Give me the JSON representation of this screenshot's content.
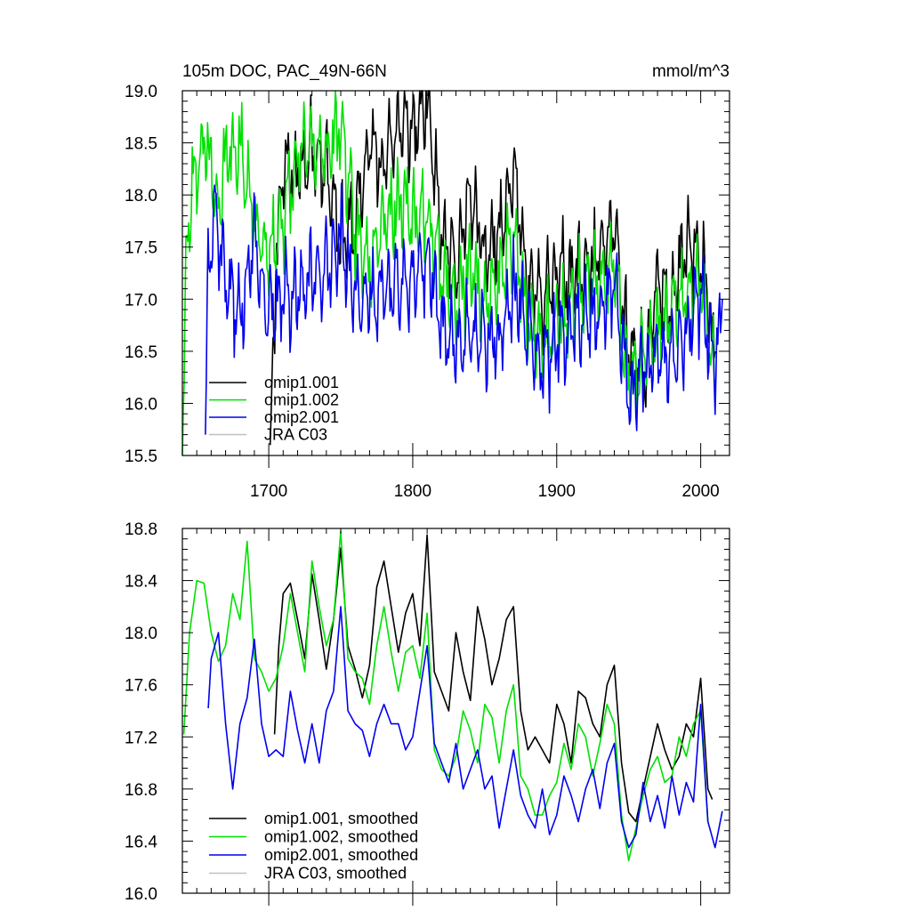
{
  "chart_data": [
    {
      "type": "line",
      "title": "105m DOC, PAC_49N-66N",
      "units": "mmol/m^3",
      "xlim": [
        1640,
        2020
      ],
      "ylim": [
        15.5,
        19.0
      ],
      "xticks": [
        1700,
        1800,
        1900,
        2000
      ],
      "yticks": [
        15.5,
        16.0,
        16.5,
        17.0,
        17.5,
        18.0,
        18.5,
        19.0
      ],
      "ytick_labels": [
        "15.5",
        "16.0",
        "16.5",
        "17.0",
        "17.5",
        "18.0",
        "18.5",
        "19.0"
      ],
      "legend_position": "lower-left",
      "series": [
        {
          "name": "omip1.001",
          "color": "#000000",
          "seed": 11,
          "x": [
            1701,
            1705,
            1710,
            1720,
            1730,
            1740,
            1750,
            1760,
            1770,
            1780,
            1790,
            1800,
            1810,
            1820,
            1830,
            1840,
            1850,
            1860,
            1870,
            1880,
            1890,
            1900,
            1910,
            1920,
            1930,
            1940,
            1950,
            1960,
            1970,
            1980,
            1990,
            2000,
            2010
          ],
          "y": [
            15.6,
            17.4,
            18.3,
            18.2,
            18.4,
            18.3,
            17.6,
            17.7,
            18.5,
            18.3,
            18.7,
            18.6,
            18.9,
            17.7,
            17.3,
            18.0,
            17.4,
            17.6,
            18.2,
            17.1,
            17.0,
            17.3,
            17.2,
            17.3,
            17.4,
            17.7,
            16.5,
            16.3,
            17.2,
            17.0,
            17.5,
            17.4,
            16.5
          ]
        },
        {
          "name": "omip1.002",
          "color": "#00e000",
          "seed": 23,
          "x": [
            1640,
            1643,
            1648,
            1655,
            1660,
            1665,
            1670,
            1680,
            1690,
            1700,
            1710,
            1720,
            1730,
            1740,
            1750,
            1760,
            1770,
            1780,
            1790,
            1800,
            1810,
            1820,
            1830,
            1840,
            1850,
            1860,
            1870,
            1880,
            1890,
            1900,
            1910,
            1920,
            1930,
            1940,
            1950,
            1960,
            1970,
            1980,
            1990,
            2000,
            2010
          ],
          "y": [
            15.5,
            17.5,
            18.2,
            18.5,
            18.3,
            17.8,
            18.4,
            18.5,
            17.7,
            17.4,
            17.8,
            18.3,
            18.5,
            18.4,
            18.7,
            17.6,
            17.4,
            17.8,
            17.9,
            17.8,
            17.8,
            17.3,
            16.9,
            17.3,
            17.0,
            17.2,
            17.6,
            16.8,
            16.6,
            16.8,
            16.9,
            17.2,
            17.1,
            17.3,
            16.2,
            16.5,
            16.7,
            16.9,
            17.0,
            17.2,
            16.2
          ]
        },
        {
          "name": "omip2.001",
          "color": "#0000ee",
          "seed": 37,
          "x": [
            1656,
            1658,
            1662,
            1670,
            1680,
            1690,
            1700,
            1710,
            1720,
            1730,
            1740,
            1750,
            1760,
            1770,
            1780,
            1790,
            1800,
            1810,
            1820,
            1830,
            1840,
            1850,
            1860,
            1870,
            1880,
            1890,
            1900,
            1910,
            1920,
            1930,
            1940,
            1950,
            1960,
            1970,
            1980,
            1990,
            2000,
            2010,
            2015
          ],
          "y": [
            15.7,
            17.4,
            17.9,
            17.2,
            16.8,
            17.6,
            16.8,
            17.1,
            17.0,
            17.2,
            17.3,
            17.6,
            17.0,
            17.0,
            17.1,
            17.1,
            17.2,
            17.4,
            16.8,
            16.5,
            16.7,
            16.6,
            16.6,
            17.1,
            16.7,
            16.3,
            16.6,
            16.7,
            16.8,
            16.8,
            17.2,
            16.1,
            16.3,
            16.5,
            16.5,
            16.7,
            17.0,
            16.4,
            17.0
          ]
        },
        {
          "name": "JRA C03",
          "color": "#c0c0c0",
          "x": [],
          "y": []
        }
      ]
    },
    {
      "type": "line",
      "title": "",
      "xlim": [
        1640,
        2020
      ],
      "ylim": [
        16.0,
        18.8
      ],
      "xticks": [
        1700,
        1800,
        1900,
        2000
      ],
      "yticks": [
        16.0,
        16.4,
        16.8,
        17.2,
        17.6,
        18.0,
        18.4,
        18.8
      ],
      "ytick_labels": [
        "16.0",
        "16.4",
        "16.8",
        "17.2",
        "17.6",
        "18.0",
        "18.4",
        "18.8"
      ],
      "legend_position": "lower-left",
      "series": [
        {
          "name": "omip1.001, smoothed",
          "color": "#000000",
          "x": [
            1704,
            1707,
            1710,
            1715,
            1720,
            1725,
            1730,
            1735,
            1740,
            1745,
            1750,
            1755,
            1760,
            1765,
            1770,
            1775,
            1780,
            1785,
            1790,
            1795,
            1800,
            1805,
            1810,
            1815,
            1820,
            1825,
            1830,
            1835,
            1840,
            1845,
            1850,
            1855,
            1860,
            1865,
            1870,
            1875,
            1880,
            1885,
            1890,
            1895,
            1900,
            1905,
            1910,
            1915,
            1920,
            1925,
            1930,
            1935,
            1940,
            1945,
            1950,
            1955,
            1960,
            1965,
            1970,
            1975,
            1980,
            1985,
            1990,
            1995,
            2000,
            2005,
            2008
          ],
          "y": [
            17.22,
            17.9,
            18.3,
            18.38,
            18.1,
            17.8,
            18.45,
            18.1,
            17.72,
            18.1,
            18.65,
            17.9,
            17.72,
            17.5,
            17.75,
            18.35,
            18.55,
            18.2,
            17.85,
            18.15,
            18.3,
            17.9,
            18.75,
            17.7,
            17.55,
            17.4,
            18.0,
            17.7,
            17.48,
            18.2,
            17.95,
            17.6,
            17.8,
            18.1,
            18.2,
            17.4,
            17.1,
            17.2,
            17.1,
            17.0,
            17.45,
            17.3,
            17.0,
            17.55,
            17.5,
            17.3,
            17.2,
            17.6,
            17.75,
            17.0,
            16.62,
            16.55,
            16.8,
            17.05,
            17.3,
            17.1,
            16.95,
            17.05,
            17.3,
            17.2,
            17.65,
            16.8,
            16.72
          ]
        },
        {
          "name": "omip1.002, smoothed",
          "color": "#00e000",
          "x": [
            1641,
            1645,
            1650,
            1655,
            1660,
            1665,
            1670,
            1675,
            1680,
            1685,
            1690,
            1695,
            1700,
            1705,
            1710,
            1715,
            1720,
            1725,
            1730,
            1735,
            1740,
            1745,
            1750,
            1755,
            1760,
            1765,
            1770,
            1775,
            1780,
            1785,
            1790,
            1795,
            1800,
            1805,
            1810,
            1815,
            1820,
            1825,
            1830,
            1835,
            1840,
            1845,
            1850,
            1855,
            1860,
            1865,
            1870,
            1875,
            1880,
            1885,
            1890,
            1895,
            1900,
            1905,
            1910,
            1915,
            1920,
            1925,
            1930,
            1935,
            1940,
            1945,
            1950,
            1955,
            1960,
            1965,
            1970,
            1975,
            1980,
            1985,
            1990,
            1995,
            2000,
            2005
          ],
          "y": [
            17.22,
            18.0,
            18.4,
            18.38,
            18.0,
            17.78,
            17.9,
            18.3,
            18.1,
            18.7,
            17.8,
            17.7,
            17.55,
            17.65,
            17.9,
            18.3,
            18.0,
            17.7,
            18.55,
            18.2,
            17.9,
            18.1,
            18.78,
            17.8,
            17.7,
            17.65,
            17.45,
            17.9,
            18.2,
            17.85,
            17.55,
            17.85,
            17.9,
            17.65,
            18.15,
            17.1,
            16.95,
            16.9,
            17.05,
            17.4,
            17.25,
            17.0,
            17.45,
            17.35,
            17.0,
            17.4,
            17.6,
            16.9,
            16.8,
            16.6,
            16.6,
            16.75,
            16.85,
            17.15,
            16.95,
            17.3,
            17.2,
            16.9,
            17.15,
            17.45,
            17.3,
            16.6,
            16.25,
            16.5,
            16.75,
            16.95,
            17.05,
            16.85,
            16.9,
            17.2,
            17.05,
            17.3,
            17.4,
            16.55
          ]
        },
        {
          "name": "omip2.001, smoothed",
          "color": "#0000ee",
          "x": [
            1658,
            1660,
            1665,
            1670,
            1675,
            1680,
            1685,
            1690,
            1695,
            1700,
            1705,
            1710,
            1715,
            1720,
            1725,
            1730,
            1735,
            1740,
            1745,
            1750,
            1755,
            1760,
            1765,
            1770,
            1775,
            1780,
            1785,
            1790,
            1795,
            1800,
            1805,
            1810,
            1815,
            1820,
            1825,
            1830,
            1835,
            1840,
            1845,
            1850,
            1855,
            1860,
            1865,
            1870,
            1875,
            1880,
            1885,
            1890,
            1895,
            1900,
            1905,
            1910,
            1915,
            1920,
            1925,
            1930,
            1935,
            1940,
            1945,
            1950,
            1955,
            1960,
            1965,
            1970,
            1975,
            1980,
            1985,
            1990,
            1995,
            2000,
            2005,
            2010,
            2015
          ],
          "y": [
            17.42,
            17.8,
            18.0,
            17.3,
            16.8,
            17.3,
            17.5,
            17.95,
            17.3,
            17.05,
            17.1,
            17.05,
            17.55,
            17.25,
            17.0,
            17.3,
            17.0,
            17.4,
            17.55,
            18.2,
            17.4,
            17.3,
            17.25,
            17.05,
            17.3,
            17.45,
            17.3,
            17.3,
            17.1,
            17.2,
            17.55,
            17.9,
            17.15,
            17.0,
            16.85,
            17.15,
            16.8,
            16.95,
            17.1,
            16.8,
            16.9,
            16.5,
            16.8,
            17.1,
            16.75,
            16.6,
            16.5,
            16.8,
            16.45,
            16.6,
            16.9,
            16.75,
            16.55,
            16.8,
            16.95,
            16.65,
            17.0,
            17.15,
            16.55,
            16.35,
            16.45,
            16.85,
            16.55,
            16.75,
            16.5,
            16.9,
            16.6,
            16.85,
            16.7,
            17.45,
            16.55,
            16.35,
            16.63
          ]
        },
        {
          "name": "JRA C03, smoothed",
          "color": "#c0c0c0",
          "x": [],
          "y": []
        }
      ]
    }
  ]
}
